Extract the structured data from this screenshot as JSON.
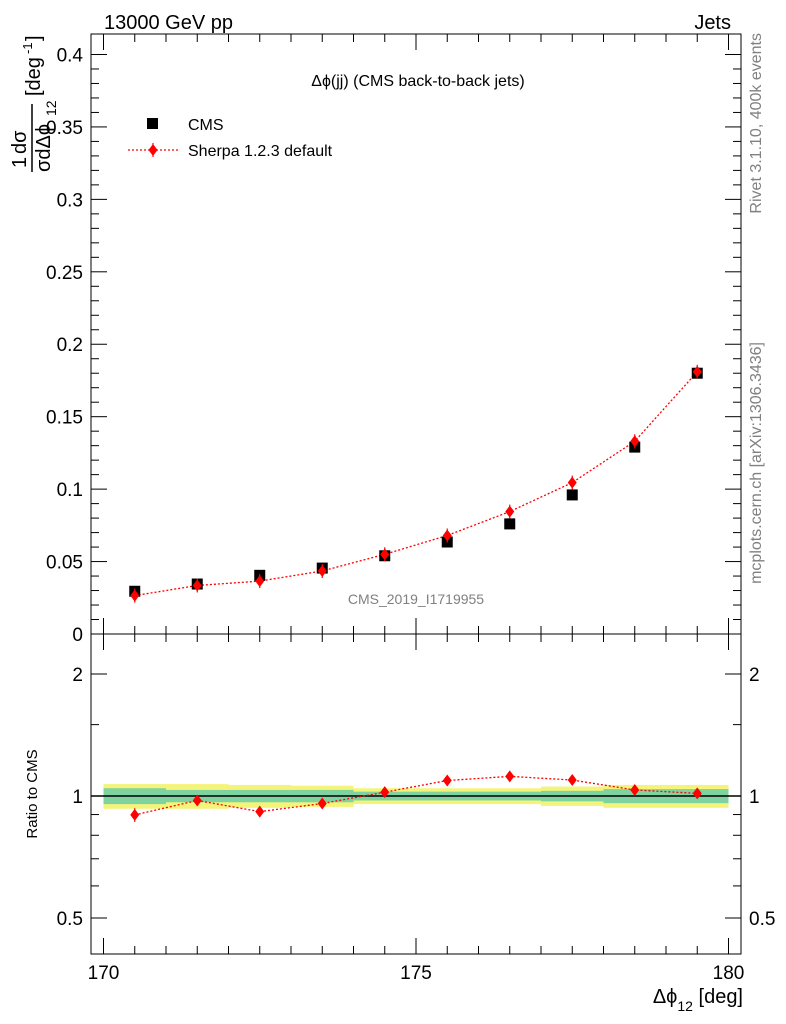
{
  "header": {
    "energy_label": "13000 GeV pp",
    "process_label": "Jets"
  },
  "side_text": {
    "rivet": "Rivet 3.1.10,  400k events",
    "source": "mcplots.cern.ch [arXiv:1306.3436]"
  },
  "chart_data": [
    {
      "type": "scatter",
      "panel": "main",
      "title": "Δϕ(jj) (CMS back-to-back jets)",
      "watermark": "CMS_2019_I1719955",
      "ylabel": "1/σ dσ/dΔϕ12 [deg-1]",
      "ylim": [
        0,
        0.41
      ],
      "yticks": [
        "0",
        "0.05",
        "0.1",
        "0.15",
        "0.2",
        "0.25",
        "0.3",
        "0.35",
        "0.4"
      ],
      "x": [
        170.5,
        171.5,
        172.5,
        173.5,
        174.5,
        175.5,
        176.5,
        177.5,
        178.5,
        179.5
      ],
      "series": [
        {
          "name": "CMS",
          "color": "#000000",
          "marker": "square",
          "values": [
            0.0295,
            0.0345,
            0.0405,
            0.0455,
            0.054,
            0.0635,
            0.076,
            0.096,
            0.129,
            0.18
          ]
        },
        {
          "name": "Sherpa 1.2.3 default",
          "color": "#ff0000",
          "marker": "diamond",
          "line": "dotted",
          "values": [
            0.0265,
            0.0335,
            0.0365,
            0.0435,
            0.055,
            0.068,
            0.0845,
            0.1045,
            0.133,
            0.181
          ]
        }
      ]
    },
    {
      "type": "scatter",
      "panel": "ratio",
      "ylabel": "Ratio to CMS",
      "ylim": [
        0.4,
        2.3
      ],
      "yscale": "log",
      "yticks": [
        "0.5",
        "1",
        "2"
      ],
      "xlabel": "Δϕ12 [deg]",
      "xlim": [
        170,
        180
      ],
      "xticks": [
        "170",
        "175",
        "180"
      ],
      "x": [
        170.5,
        171.5,
        172.5,
        173.5,
        174.5,
        175.5,
        176.5,
        177.5,
        178.5,
        179.5
      ],
      "series": [
        {
          "name": "Sherpa 1.2.3 default",
          "color": "#ff0000",
          "values": [
            0.898,
            0.975,
            0.915,
            0.958,
            1.022,
            1.092,
            1.118,
            1.095,
            1.035,
            1.015
          ],
          "errors": [
            0.035,
            0.028,
            0.028,
            0.024,
            0.022,
            0.02,
            0.02,
            0.018,
            0.015,
            0.012
          ]
        }
      ],
      "bands": {
        "inner_color": "#7ed3a0",
        "outer_color": "#f4f47a",
        "inner": [
          0.045,
          0.035,
          0.035,
          0.035,
          0.025,
          0.025,
          0.025,
          0.03,
          0.04,
          0.04
        ],
        "outer": [
          0.07,
          0.07,
          0.065,
          0.06,
          0.045,
          0.045,
          0.045,
          0.055,
          0.065,
          0.065
        ]
      }
    }
  ]
}
